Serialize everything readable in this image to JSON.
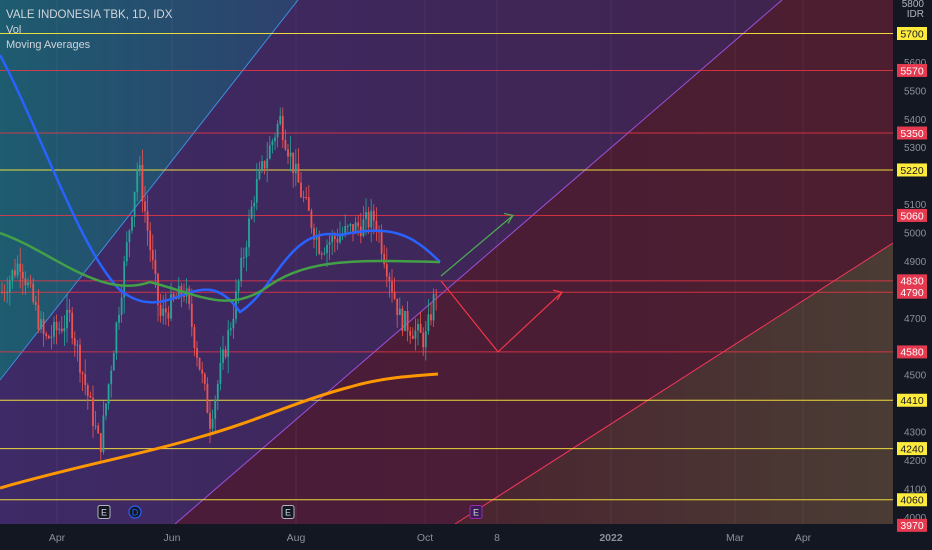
{
  "legend": {
    "title": "VALE INDONESIA TBK, 1D, IDX",
    "line2": "Vol",
    "line3": "Moving Averages"
  },
  "price_axis": {
    "unit_top": "5800",
    "unit": "IDR"
  },
  "colors": {
    "background": "#131722",
    "yellow_line": "#ffeb3b",
    "red_line": "#f23645",
    "blue_ma": "#2962ff",
    "green_ma": "#43a047",
    "orange_ma": "#ff9800",
    "green_arrow": "#4caf50",
    "red_arrow": "#f23645"
  },
  "chart_data": {
    "type": "candlestick",
    "x_tick_labels": [
      "Apr",
      "Jun",
      "Aug",
      "Oct",
      "8",
      "2022",
      "Mar",
      "Apr"
    ],
    "y_tick_labels": [
      "5600",
      "5500",
      "5400",
      "5300",
      "5100",
      "5000",
      "4900",
      "4700",
      "4500",
      "4300",
      "4200",
      "4100",
      "4000"
    ],
    "ylim": [
      3970,
      5810
    ],
    "horizontal_levels": [
      {
        "value": 5700,
        "label": "5700",
        "color": "yellow"
      },
      {
        "value": 5570,
        "label": "5570",
        "color": "red"
      },
      {
        "value": 5350,
        "label": "5350",
        "color": "red"
      },
      {
        "value": 5220,
        "label": "5220",
        "color": "yellow"
      },
      {
        "value": 5060,
        "label": "5060",
        "color": "red"
      },
      {
        "value": 4830,
        "label": "4830",
        "color": "red"
      },
      {
        "value": 4790,
        "label": "4790",
        "color": "red"
      },
      {
        "value": 4580,
        "label": "4580",
        "color": "red"
      },
      {
        "value": 4410,
        "label": "4410",
        "color": "yellow"
      },
      {
        "value": 4240,
        "label": "4240",
        "color": "yellow"
      },
      {
        "value": 4060,
        "label": "4060",
        "color": "yellow"
      },
      {
        "value": 3970,
        "label": "3970",
        "color": "red"
      }
    ],
    "event_markers": [
      {
        "label": "E",
        "month": "Apr"
      },
      {
        "label": "D",
        "month": "May"
      },
      {
        "label": "E",
        "month": "Aug"
      },
      {
        "label": "E",
        "month": "Oct"
      }
    ],
    "moving_averages": [
      {
        "color": "blue"
      },
      {
        "color": "green"
      },
      {
        "color": "orange"
      }
    ],
    "projection": {
      "bullish_target": 5060,
      "bearish_path": [
        4830,
        4580,
        4790
      ]
    },
    "grid": true
  }
}
